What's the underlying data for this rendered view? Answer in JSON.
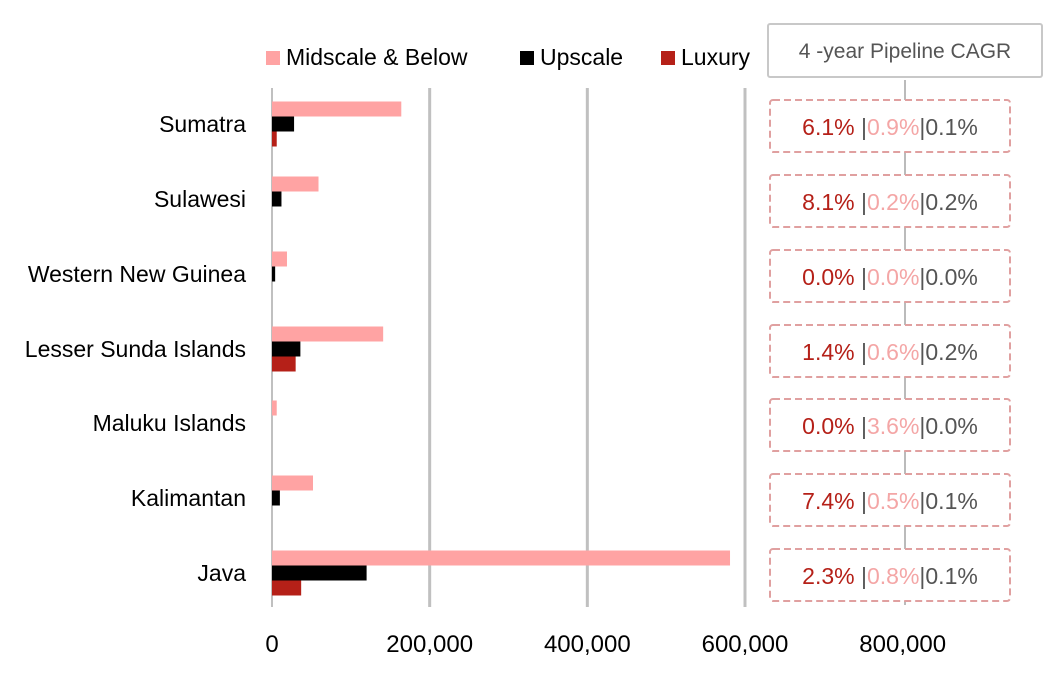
{
  "chart_data": {
    "type": "bar",
    "orientation": "horizontal",
    "categories": [
      "Sumatra",
      "Sulawesi",
      "Western New Guinea",
      "Lesser Sunda Islands",
      "Maluku Islands",
      "Kalimantan",
      "Java"
    ],
    "series": [
      {
        "name": "Midscale & Below",
        "color": "#ffa3a3",
        "values": [
          164000,
          59000,
          19000,
          141000,
          6000,
          52000,
          581000
        ]
      },
      {
        "name": "Upscale",
        "color": "#000000",
        "values": [
          28000,
          12000,
          4000,
          36000,
          0,
          10000,
          120000
        ]
      },
      {
        "name": "Luxury",
        "color": "#b52018",
        "values": [
          6000,
          0,
          0,
          30000,
          0,
          0,
          37000
        ]
      }
    ],
    "xlim": [
      0,
      800000
    ],
    "xticks": [
      "0",
      "200,000",
      "400,000",
      "600,000",
      "800,000"
    ],
    "xtick_values": [
      0,
      200000,
      400000,
      600000,
      800000
    ],
    "grid": "vertical",
    "legend": "top",
    "annotation": {
      "title": "4 -year Pipeline CAGR",
      "rows": [
        {
          "luxury": "6.1%",
          "midscale": "0.9%",
          "upscale": "0.1%"
        },
        {
          "luxury": "8.1%",
          "midscale": "0.2%",
          "upscale": "0.2%"
        },
        {
          "luxury": "0.0%",
          "midscale": "0.0%",
          "upscale": "0.0%"
        },
        {
          "luxury": "1.4%",
          "midscale": "0.6%",
          "upscale": "0.2%"
        },
        {
          "luxury": "0.0%",
          "midscale": "3.6%",
          "upscale": "0.0%"
        },
        {
          "luxury": "7.4%",
          "midscale": "0.5%",
          "upscale": "0.1%"
        },
        {
          "luxury": "2.3%",
          "midscale": "0.8%",
          "upscale": "0.1%"
        }
      ],
      "colors": {
        "luxury": "#b52018",
        "midscale": "#f4a6a6",
        "upscale": "#555555",
        "separator": "#555555",
        "border": "#e0a0a0"
      }
    }
  }
}
